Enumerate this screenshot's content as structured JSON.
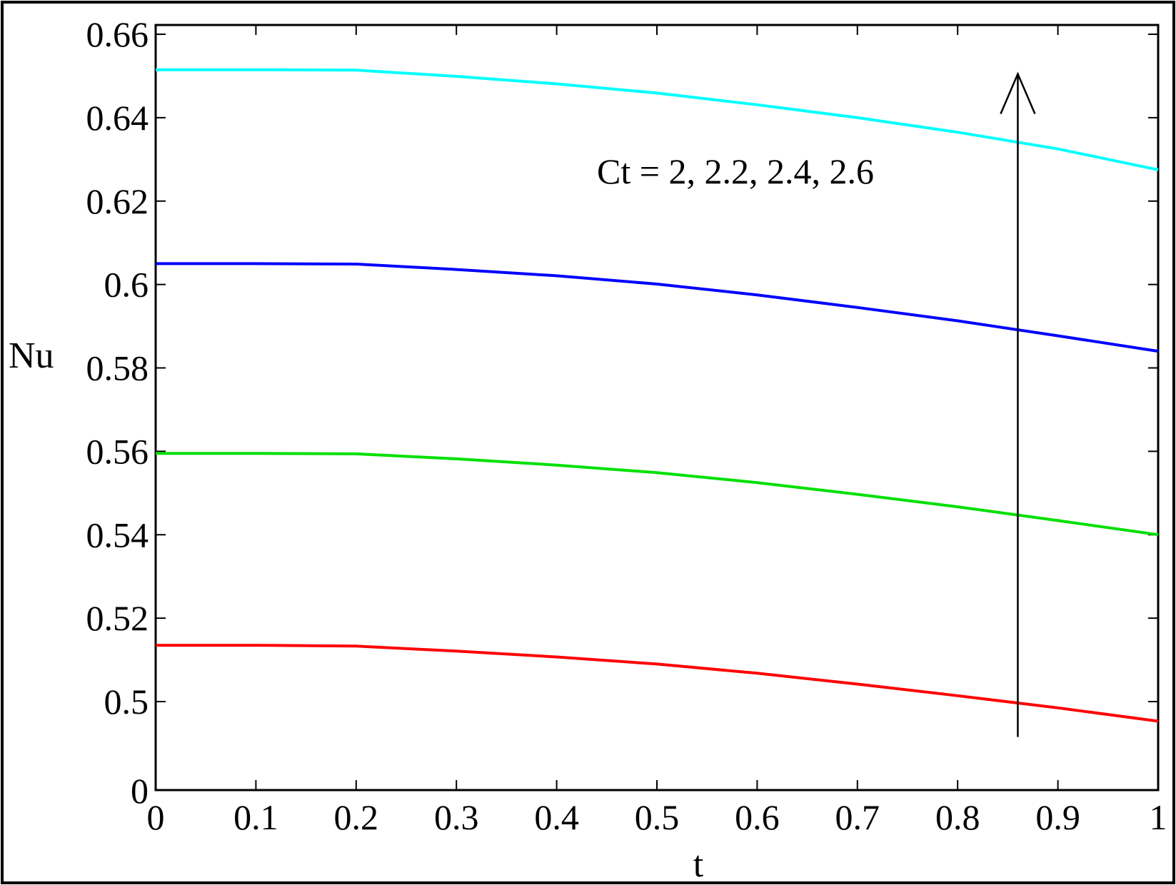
{
  "chart_data": {
    "type": "line",
    "title": "",
    "xlabel": "t",
    "ylabel": "Nu",
    "xlim": [
      0,
      1
    ],
    "ylim": [
      0.48,
      0.66
    ],
    "y_axis_bottom_label": "0",
    "x_ticks": [
      "0",
      "0.1",
      "0.2",
      "0.3",
      "0.4",
      "0.5",
      "0.6",
      "0.7",
      "0.8",
      "0.9",
      "1"
    ],
    "y_ticks": [
      "0.5",
      "0.52",
      "0.54",
      "0.56",
      "0.58",
      "0.6",
      "0.62",
      "0.64",
      "0.66"
    ],
    "grid": false,
    "annotation": "Ct = 2, 2.2, 2.4, 2.6",
    "arrow": {
      "x": 0.86,
      "y_from": 0.4915,
      "y_to": 0.6505
    },
    "x": [
      0,
      0.1,
      0.2,
      0.3,
      0.4,
      0.5,
      0.6,
      0.7,
      0.8,
      0.9,
      1.0
    ],
    "series": [
      {
        "color": "#ff0000",
        "values": [
          0.5135,
          0.5135,
          0.5133,
          0.5121,
          0.5107,
          0.509,
          0.5068,
          0.5042,
          0.5014,
          0.4985,
          0.4953
        ]
      },
      {
        "color": "#00e000",
        "values": [
          0.5595,
          0.5595,
          0.5594,
          0.5582,
          0.5567,
          0.5549,
          0.5525,
          0.5497,
          0.5467,
          0.5434,
          0.54
        ]
      },
      {
        "color": "#0000ff",
        "values": [
          0.605,
          0.605,
          0.6049,
          0.6036,
          0.6021,
          0.6001,
          0.5975,
          0.5945,
          0.5913,
          0.5877,
          0.584
        ]
      },
      {
        "color": "#00ffff",
        "values": [
          0.6515,
          0.6515,
          0.6514,
          0.6499,
          0.6481,
          0.6459,
          0.6431,
          0.64,
          0.6365,
          0.6325,
          0.6275
        ]
      }
    ]
  }
}
